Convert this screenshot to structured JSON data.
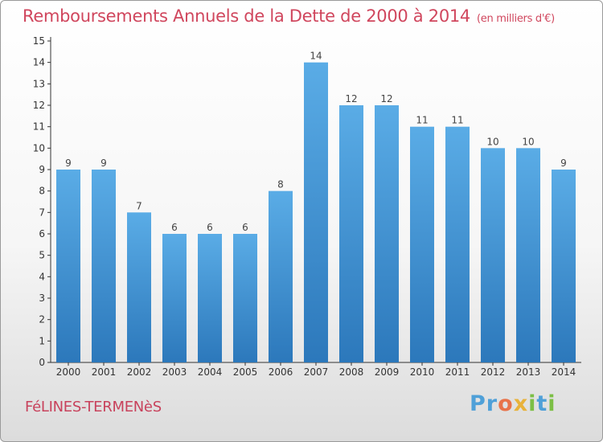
{
  "header": {
    "title": "Remboursements Annuels de la Dette de 2000 à 2014",
    "unit": "(en milliers d'€)"
  },
  "footer": {
    "commune": "FéLINES-TERMENèS",
    "logo": "Proxiti"
  },
  "colors": {
    "bar_light": "#5aace6",
    "bar_dark": "#2f7bbf",
    "title": "#d0465d"
  },
  "chart_data": {
    "type": "bar",
    "title": "Remboursements Annuels de la Dette de 2000 à 2014",
    "xlabel": "",
    "ylabel": "",
    "categories": [
      "2000",
      "2001",
      "2002",
      "2003",
      "2004",
      "2005",
      "2006",
      "2007",
      "2008",
      "2009",
      "2010",
      "2011",
      "2012",
      "2013",
      "2014"
    ],
    "values": [
      9,
      9,
      7,
      6,
      6,
      6,
      8,
      14,
      12,
      12,
      11,
      11,
      10,
      10,
      9
    ],
    "ylim": [
      0,
      15
    ],
    "yticks": [
      0,
      1,
      2,
      3,
      4,
      5,
      6,
      7,
      8,
      9,
      10,
      11,
      12,
      13,
      14,
      15
    ],
    "grid": false,
    "legend": "none",
    "data_labels": true
  }
}
